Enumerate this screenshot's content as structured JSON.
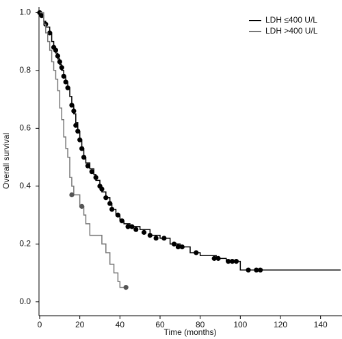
{
  "chart_data": {
    "type": "step",
    "x_label": "Time (months)",
    "y_label": "Overall survival",
    "xlim": [
      0,
      150
    ],
    "ylim": [
      -0.048,
      1.02
    ],
    "xticks": [
      0,
      20,
      40,
      60,
      80,
      100,
      120,
      140
    ],
    "yticks": [
      {
        "value": 0,
        "label": "0.0"
      },
      0.2,
      0.4,
      0.6,
      0.8,
      {
        "value": 1,
        "label": "1.0"
      }
    ],
    "legend": "top-right",
    "series": [
      {
        "name": "LDH ≤400 U/L",
        "color": "#000000",
        "x": [
          0,
          1,
          2,
          3,
          5,
          6,
          7,
          8,
          9,
          10,
          11,
          12,
          13,
          14,
          15,
          16,
          17,
          18,
          19,
          20,
          21,
          22,
          23,
          25,
          27,
          28,
          30,
          31,
          33,
          35,
          36,
          38,
          40,
          42,
          45,
          50,
          55,
          60,
          65,
          70,
          75,
          80,
          88,
          93,
          100,
          150
        ],
        "values": [
          1.0,
          0.99,
          0.97,
          0.95,
          0.93,
          0.9,
          0.88,
          0.86,
          0.84,
          0.82,
          0.8,
          0.78,
          0.76,
          0.74,
          0.71,
          0.68,
          0.65,
          0.62,
          0.59,
          0.56,
          0.53,
          0.5,
          0.48,
          0.46,
          0.44,
          0.42,
          0.4,
          0.38,
          0.36,
          0.34,
          0.32,
          0.3,
          0.28,
          0.27,
          0.26,
          0.25,
          0.23,
          0.22,
          0.2,
          0.19,
          0.17,
          0.16,
          0.15,
          0.14,
          0.11,
          0.11
        ],
        "censor_x": [
          0,
          1,
          3,
          5,
          7,
          8,
          9,
          10,
          11,
          12,
          13,
          14,
          16,
          17,
          18,
          19,
          20,
          21,
          22,
          24,
          26,
          28,
          30,
          31,
          33,
          35,
          36,
          39,
          41,
          44,
          46,
          48,
          52,
          55,
          58,
          62,
          67,
          69,
          71,
          78,
          87,
          89,
          94,
          96,
          98,
          104,
          108,
          110
        ],
        "censor_values": [
          1.0,
          0.99,
          0.96,
          0.93,
          0.88,
          0.87,
          0.85,
          0.83,
          0.81,
          0.78,
          0.76,
          0.74,
          0.68,
          0.66,
          0.61,
          0.59,
          0.56,
          0.53,
          0.5,
          0.47,
          0.45,
          0.43,
          0.4,
          0.39,
          0.36,
          0.34,
          0.32,
          0.3,
          0.28,
          0.26,
          0.26,
          0.25,
          0.24,
          0.23,
          0.22,
          0.22,
          0.2,
          0.19,
          0.19,
          0.17,
          0.15,
          0.15,
          0.14,
          0.14,
          0.14,
          0.11,
          0.11,
          0.11
        ]
      },
      {
        "name": "LDH >400 U/L",
        "color": "#777777",
        "x": [
          0,
          2,
          3,
          4,
          5,
          6,
          7,
          8,
          9,
          10,
          11,
          12,
          13,
          14,
          15,
          16,
          17,
          20,
          22,
          23,
          25,
          30,
          31,
          33,
          35,
          37,
          39,
          40,
          43
        ],
        "values": [
          1.0,
          0.96,
          0.93,
          0.9,
          0.87,
          0.83,
          0.8,
          0.77,
          0.73,
          0.67,
          0.63,
          0.57,
          0.53,
          0.5,
          0.43,
          0.4,
          0.37,
          0.33,
          0.3,
          0.27,
          0.23,
          0.23,
          0.2,
          0.17,
          0.13,
          0.1,
          0.07,
          0.05,
          0.05
        ],
        "censor_x": [
          16,
          21,
          43
        ],
        "censor_values": [
          0.37,
          0.33,
          0.05
        ]
      }
    ]
  }
}
